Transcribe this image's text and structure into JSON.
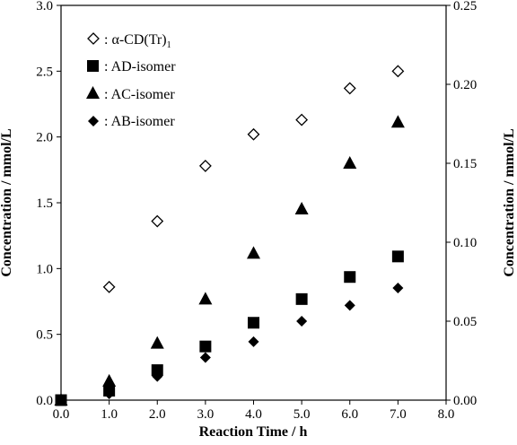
{
  "chart_data": {
    "type": "scatter",
    "xlabel": "Reaction Time / h",
    "ylabel_left": "Concentration / mmol/L",
    "ylabel_right": "Concentration / mmol/L",
    "xlim": [
      0,
      8
    ],
    "ylim_left": [
      0,
      3
    ],
    "ylim_right": [
      0,
      0.25
    ],
    "grid": false,
    "legend_position": "top-left",
    "x_ticks": [
      "0.0",
      "1.0",
      "2.0",
      "3.0",
      "4.0",
      "5.0",
      "6.0",
      "7.0",
      "8.0"
    ],
    "y_left_ticks": [
      "0.0",
      "0.5",
      "1.0",
      "1.5",
      "2.0",
      "2.5",
      "3.0"
    ],
    "y_right_ticks": [
      "0.00",
      "0.05",
      "0.10",
      "0.15",
      "0.20",
      "0.25"
    ],
    "series": [
      {
        "name": ": α-CD(Tr)",
        "name_subscript": "1",
        "axis": "left",
        "marker": "diamond-open",
        "x": [
          1,
          2,
          3,
          4,
          5,
          6,
          7
        ],
        "y": [
          0.86,
          1.36,
          1.78,
          2.02,
          2.13,
          2.37,
          2.5
        ]
      },
      {
        "name": ": AD-isomer",
        "axis": "right",
        "marker": "square-filled",
        "x": [
          0,
          1,
          2,
          3,
          4,
          5,
          6,
          7
        ],
        "y": [
          0.0,
          0.006,
          0.019,
          0.034,
          0.049,
          0.064,
          0.078,
          0.091
        ]
      },
      {
        "name": ": AC-isomer",
        "axis": "right",
        "marker": "triangle-filled",
        "x": [
          0,
          1,
          2,
          3,
          4,
          5,
          6,
          7
        ],
        "y": [
          0.0,
          0.012,
          0.036,
          0.064,
          0.093,
          0.121,
          0.15,
          0.176
        ]
      },
      {
        "name": ": AB-isomer",
        "axis": "right",
        "marker": "diamond-filled",
        "x": [
          0,
          1,
          2,
          3,
          4,
          5,
          6,
          7
        ],
        "y": [
          0.0,
          0.004,
          0.015,
          0.027,
          0.037,
          0.05,
          0.06,
          0.071
        ]
      }
    ]
  }
}
